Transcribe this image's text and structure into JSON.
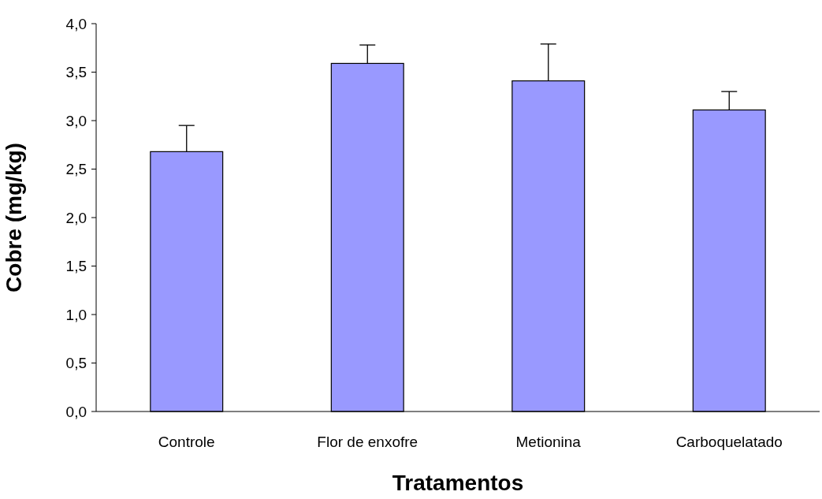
{
  "chart_data": {
    "type": "bar",
    "xlabel": "Tratamentos",
    "ylabel": "Cobre (mg/kg)",
    "categories": [
      "Controle",
      "Flor de enxofre",
      "Metionina",
      "Carboquelatado"
    ],
    "values": [
      2.68,
      3.59,
      3.41,
      3.11
    ],
    "errors": [
      [
        2.68,
        2.95
      ],
      [
        3.59,
        3.78
      ],
      [
        3.41,
        3.79
      ],
      [
        3.11,
        3.3
      ]
    ],
    "color": "#9999ff",
    "ylim": [
      0,
      4
    ],
    "yticks": [
      {
        "value": 0,
        "label": "0,0"
      },
      {
        "value": 0.5,
        "label": "0,5"
      },
      {
        "value": 1,
        "label": "1,0"
      },
      {
        "value": 1.5,
        "label": "1,5"
      },
      {
        "value": 2,
        "label": "2,0"
      },
      {
        "value": 2.5,
        "label": "2,5"
      },
      {
        "value": 3,
        "label": "3,0"
      },
      {
        "value": 3.5,
        "label": "3,5"
      },
      {
        "value": 4,
        "label": "4,0"
      }
    ],
    "grid": false
  }
}
